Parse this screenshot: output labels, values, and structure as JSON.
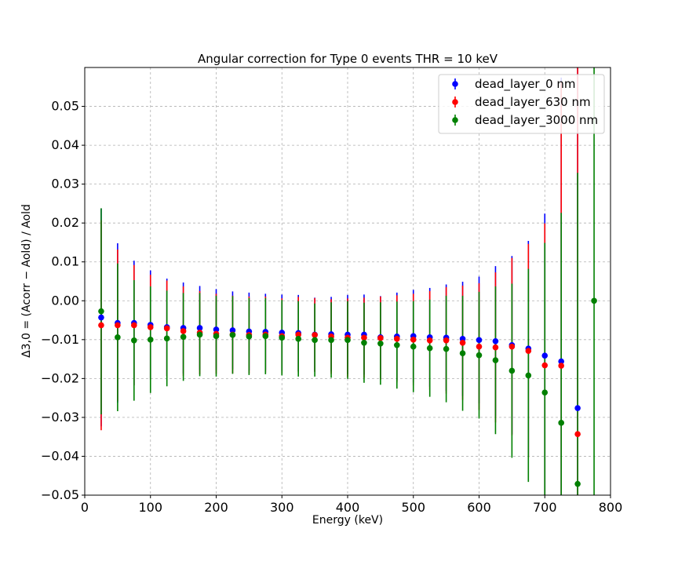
{
  "chart_data": {
    "type": "scatter",
    "title": "Angular correction for Type 0 events THR = 10 keV",
    "xlabel": "Energy (keV)",
    "ylabel": "Δ3,0 = (Acorr − Aold) / Aold",
    "xlim": [
      0,
      800
    ],
    "ylim": [
      -0.05,
      0.06
    ],
    "x_ticks": [
      "0",
      "100",
      "200",
      "300",
      "400",
      "500",
      "600",
      "700",
      "800"
    ],
    "y_ticks": [
      "−0.05",
      "−0.04",
      "−0.03",
      "−0.02",
      "−0.01",
      "0.00",
      "0.01",
      "0.02",
      "0.03",
      "0.04",
      "0.05"
    ],
    "grid": true,
    "legend_position": "top-right",
    "x": [
      25,
      50,
      75,
      100,
      125,
      150,
      175,
      200,
      225,
      250,
      275,
      300,
      325,
      350,
      375,
      400,
      425,
      450,
      475,
      500,
      525,
      550,
      575,
      600,
      625,
      650,
      675,
      700,
      725,
      750,
      775
    ],
    "series": [
      {
        "name": "dead_layer_0 nm",
        "color": "#0000ff",
        "values": [
          -0.0043,
          -0.0057,
          -0.0057,
          -0.0062,
          -0.0068,
          -0.007,
          -0.007,
          -0.0074,
          -0.0076,
          -0.0079,
          -0.008,
          -0.0082,
          -0.0083,
          -0.0087,
          -0.0086,
          -0.0087,
          -0.0087,
          -0.0094,
          -0.0092,
          -0.0091,
          -0.0094,
          -0.0095,
          -0.0098,
          -0.0101,
          -0.0104,
          -0.0114,
          -0.0123,
          -0.0141,
          -0.0156,
          -0.0276,
          null
        ],
        "err": [
          0.028,
          0.0205,
          0.016,
          0.014,
          0.0125,
          0.0117,
          0.0108,
          0.0104,
          0.01,
          0.01,
          0.0098,
          0.0098,
          0.0098,
          0.0095,
          0.0096,
          0.0102,
          0.0103,
          0.0106,
          0.0113,
          0.0119,
          0.0127,
          0.0137,
          0.0147,
          0.0163,
          0.0193,
          0.0229,
          0.0277,
          0.0365,
          0.073,
          0.1,
          null
        ]
      },
      {
        "name": "dead_layer_630 nm",
        "color": "#ff0000",
        "values": [
          -0.0063,
          -0.0063,
          -0.0063,
          -0.0068,
          -0.0071,
          -0.0078,
          -0.0082,
          -0.0085,
          -0.0087,
          -0.0088,
          -0.0087,
          -0.0091,
          -0.0087,
          -0.0088,
          -0.0092,
          -0.0095,
          -0.0095,
          -0.0096,
          -0.0098,
          -0.01,
          -0.0102,
          -0.0102,
          -0.0108,
          -0.0118,
          -0.012,
          -0.0118,
          -0.0129,
          -0.0166,
          -0.0167,
          -0.0343,
          null
        ],
        "err": [
          0.027,
          0.0195,
          0.0155,
          0.0135,
          0.0123,
          0.0115,
          0.0107,
          0.0103,
          0.01,
          0.0099,
          0.0098,
          0.0097,
          0.0097,
          0.0095,
          0.0096,
          0.0101,
          0.0103,
          0.0107,
          0.0112,
          0.0118,
          0.0127,
          0.0137,
          0.0147,
          0.0163,
          0.0193,
          0.0228,
          0.0275,
          0.0365,
          0.073,
          0.1,
          null
        ]
      },
      {
        "name": "dead_layer_3000 nm",
        "color": "#008000",
        "values": [
          -0.0027,
          -0.0094,
          -0.0102,
          -0.01,
          -0.0097,
          -0.0093,
          -0.0087,
          -0.0091,
          -0.0088,
          -0.0092,
          -0.0091,
          -0.0095,
          -0.0098,
          -0.0101,
          -0.0101,
          -0.0101,
          -0.0108,
          -0.011,
          -0.0114,
          -0.0118,
          -0.0122,
          -0.0124,
          -0.0135,
          -0.014,
          -0.0153,
          -0.018,
          -0.0192,
          -0.0236,
          -0.0314,
          -0.0471,
          0.0
        ],
        "err": [
          0.0265,
          0.019,
          0.0155,
          0.0137,
          0.0123,
          0.0113,
          0.0107,
          0.0104,
          0.01,
          0.0099,
          0.0098,
          0.0097,
          0.0097,
          0.0094,
          0.0097,
          0.01,
          0.0103,
          0.0106,
          0.0112,
          0.0117,
          0.0125,
          0.0137,
          0.0148,
          0.0163,
          0.019,
          0.0224,
          0.0274,
          0.0385,
          0.054,
          0.08,
          0.1
        ]
      }
    ]
  }
}
